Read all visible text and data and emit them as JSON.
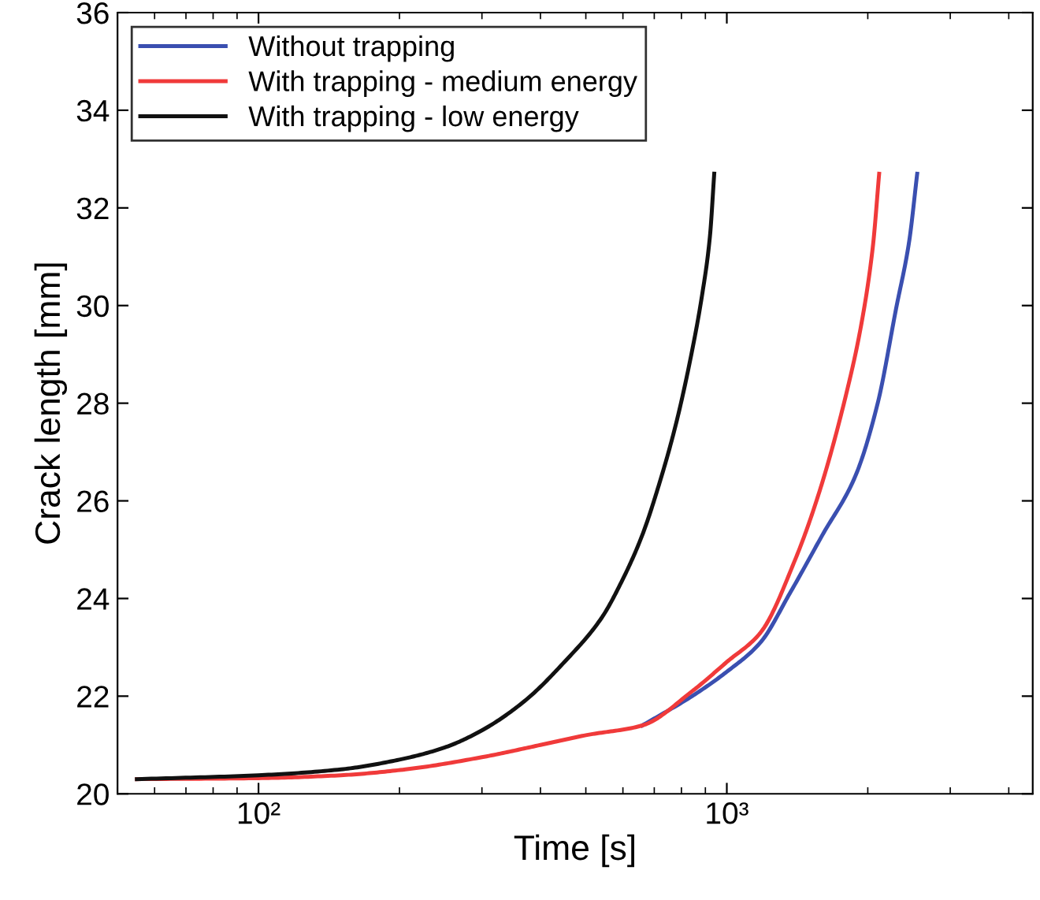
{
  "chart_data": {
    "type": "line",
    "xlabel": "Time [s]",
    "ylabel": "Crack length [mm]",
    "log": "x",
    "xlim": [
      50,
      4500
    ],
    "xticks": [
      {
        "value": 100,
        "label": "10²"
      },
      {
        "value": 1000,
        "label": "10³"
      }
    ],
    "ylim": [
      20,
      36
    ],
    "yticks": [
      20,
      22,
      24,
      26,
      28,
      30,
      32,
      34,
      36
    ],
    "grid": false,
    "legend": "top left",
    "marker": "none",
    "line_style": "solid",
    "series": [
      {
        "name": "Without trapping",
        "color": "#3a4fb0",
        "x": [
          660,
          843,
          1000,
          1180,
          1362,
          1600,
          1880,
          2100,
          2300,
          2450,
          2550
        ],
        "values": [
          21.4,
          22.0,
          22.5,
          23.1,
          24.1,
          25.3,
          26.5,
          28.0,
          29.95,
          31.3,
          32.7
        ]
      },
      {
        "name": "With trapping - medium energy",
        "color": "#f03a3a",
        "x": [
          55,
          100,
          150,
          206,
          300,
          400,
          500,
          660,
          843,
          1000,
          1180,
          1400,
          1578,
          1800,
          1936,
          2050,
          2115
        ],
        "values": [
          20.3,
          20.32,
          20.38,
          20.5,
          20.75,
          21.0,
          21.2,
          21.4,
          22.1,
          22.7,
          23.3,
          24.8,
          26.2,
          28.2,
          29.6,
          31.2,
          32.7
        ]
      },
      {
        "name": "With trapping - low energy",
        "color": "#111111",
        "x": [
          55,
          100,
          150,
          200,
          250,
          300,
          370,
          450,
          540,
          600,
          660,
          720,
          780,
          840,
          885,
          920,
          940
        ],
        "values": [
          20.3,
          20.38,
          20.5,
          20.7,
          20.95,
          21.3,
          21.9,
          22.7,
          23.6,
          24.4,
          25.3,
          26.4,
          27.6,
          29.0,
          30.2,
          31.4,
          32.7
        ]
      }
    ]
  }
}
